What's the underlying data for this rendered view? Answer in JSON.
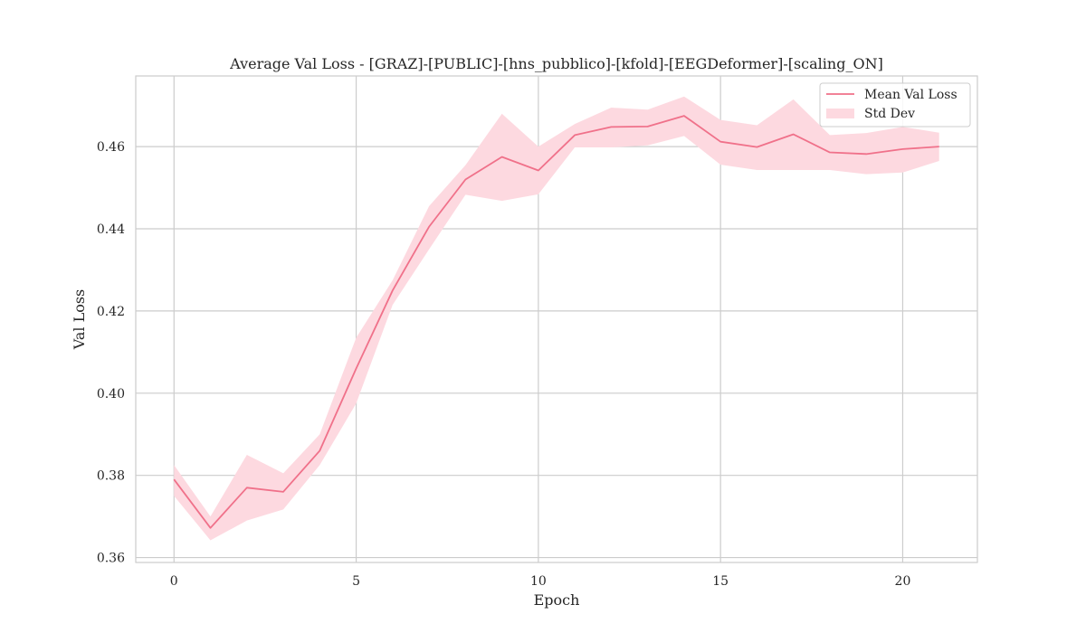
{
  "chart_data": {
    "type": "line",
    "title": "Average Val Loss - [GRAZ]-[PUBLIC]-[hns_pubblico]-[kfold]-[EEGDeformer]-[scaling_ON]",
    "xlabel": "Epoch",
    "ylabel": "Val Loss",
    "xlim": [
      -1.05,
      22.05
    ],
    "ylim": [
      0.3588,
      0.4772
    ],
    "xticks": [
      0,
      5,
      10,
      15,
      20
    ],
    "xtick_labels": [
      "0",
      "5",
      "10",
      "15",
      "20"
    ],
    "yticks": [
      0.36,
      0.38,
      0.4,
      0.42,
      0.44,
      0.46
    ],
    "ytick_labels": [
      "0.36",
      "0.38",
      "0.40",
      "0.42",
      "0.44",
      "0.46"
    ],
    "grid": true,
    "legend_position": "top-right",
    "x": [
      0,
      1,
      2,
      3,
      4,
      5,
      6,
      7,
      8,
      9,
      10,
      11,
      12,
      13,
      14,
      15,
      16,
      17,
      18,
      19,
      20,
      21
    ],
    "series": [
      {
        "name": "Mean Val Loss",
        "kind": "line",
        "color": "#f0718a",
        "values": [
          0.379,
          0.3672,
          0.377,
          0.376,
          0.386,
          0.406,
          0.425,
          0.4405,
          0.452,
          0.4575,
          0.4542,
          0.4628,
          0.4648,
          0.4649,
          0.4675,
          0.4612,
          0.4599,
          0.463,
          0.4586,
          0.4582,
          0.4594,
          0.46
        ]
      },
      {
        "name": "Std Dev",
        "kind": "band",
        "color": "#fdd9e0",
        "upper": [
          0.3825,
          0.37,
          0.385,
          0.3805,
          0.39,
          0.4135,
          0.4275,
          0.4455,
          0.4555,
          0.468,
          0.46,
          0.4655,
          0.4695,
          0.469,
          0.4722,
          0.4665,
          0.4652,
          0.4715,
          0.4628,
          0.4633,
          0.4648,
          0.4634
        ],
        "lower": [
          0.375,
          0.3642,
          0.369,
          0.3717,
          0.3825,
          0.3975,
          0.4215,
          0.435,
          0.4483,
          0.4468,
          0.4484,
          0.4598,
          0.4598,
          0.4603,
          0.4626,
          0.4556,
          0.4543,
          0.4543,
          0.4543,
          0.4533,
          0.4537,
          0.4565
        ]
      }
    ]
  }
}
